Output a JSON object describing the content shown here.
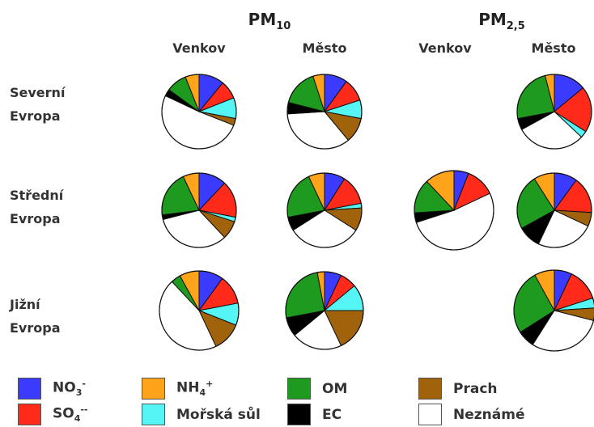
{
  "chart_data": {
    "type": "pie",
    "title": "",
    "groups": [
      {
        "label": "PM",
        "subscript": "10",
        "columns": [
          "Venkov",
          "Město"
        ]
      },
      {
        "label": "PM",
        "subscript": "2,5",
        "columns": [
          "Venkov",
          "Město"
        ]
      }
    ],
    "regions": [
      {
        "line1": "Severní",
        "line2": "Evropa"
      },
      {
        "line1": "Střední",
        "line2": "Evropa"
      },
      {
        "line1": "Jižní",
        "line2": "Evropa"
      }
    ],
    "components": [
      {
        "key": "NO3",
        "label": "NO",
        "sub": "3",
        "sup": "-",
        "color": "#3b3bff"
      },
      {
        "key": "SO4",
        "label": "SO",
        "sub": "4",
        "sup": "--",
        "color": "#ff2a1a"
      },
      {
        "key": "NH4",
        "label": "NH",
        "sub": "4",
        "sup": "+",
        "color": "#ffa31a"
      },
      {
        "key": "SeaSalt",
        "label": "Mořská sůl",
        "sub": "",
        "sup": "",
        "color": "#55f5f5"
      },
      {
        "key": "OM",
        "label": "OM",
        "sub": "",
        "sup": "",
        "color": "#1e9a1e"
      },
      {
        "key": "EC",
        "label": "EC",
        "sub": "",
        "sup": "",
        "color": "#000000"
      },
      {
        "key": "Dust",
        "label": "Prach",
        "sub": "",
        "sup": "",
        "color": "#a0620a"
      },
      {
        "key": "Unknown",
        "label": "Neznámé",
        "sub": "",
        "sup": "",
        "color": "#ffffff"
      }
    ],
    "pies": [
      {
        "region": "Severní Evropa",
        "size": "PM10",
        "site": "Venkov",
        "values": {
          "NO3": 11,
          "SO4": 8,
          "NH4": 6,
          "SeaSalt": 9,
          "OM": 9,
          "EC": 3,
          "Dust": 3,
          "Unknown": 51
        }
      },
      {
        "region": "Severní Evropa",
        "size": "PM10",
        "site": "Město",
        "values": {
          "NO3": 10,
          "SO4": 10,
          "NH4": 5,
          "SeaSalt": 8,
          "OM": 16,
          "EC": 5,
          "Dust": 11,
          "Unknown": 35
        }
      },
      {
        "region": "Severní Evropa",
        "size": "PM2,5",
        "site": "Město",
        "values": {
          "NO3": 14,
          "SO4": 20,
          "NH4": 4,
          "SeaSalt": 3,
          "OM": 24,
          "EC": 5,
          "Dust": 0,
          "Unknown": 30
        }
      },
      {
        "region": "Střední Evropa",
        "size": "PM10",
        "site": "Venkov",
        "values": {
          "NO3": 12,
          "SO4": 16,
          "NH4": 7,
          "SeaSalt": 2,
          "OM": 20,
          "EC": 2,
          "Dust": 8,
          "Unknown": 33
        }
      },
      {
        "region": "Střední Evropa",
        "size": "PM10",
        "site": "Město",
        "values": {
          "NO3": 9,
          "SO4": 13,
          "NH4": 7,
          "SeaSalt": 2,
          "OM": 21,
          "EC": 6,
          "Dust": 10,
          "Unknown": 32
        }
      },
      {
        "region": "Střední Evropa",
        "size": "PM2,5",
        "site": "Venkov",
        "values": {
          "NO3": 6,
          "SO4": 12,
          "NH4": 12,
          "SeaSalt": 0,
          "OM": 14,
          "EC": 4,
          "Dust": 0,
          "Unknown": 52
        }
      },
      {
        "region": "Střední Evropa",
        "size": "PM2,5",
        "site": "Město",
        "values": {
          "NO3": 10,
          "SO4": 16,
          "NH4": 9,
          "SeaSalt": 0,
          "OM": 24,
          "EC": 10,
          "Dust": 6,
          "Unknown": 25
        }
      },
      {
        "region": "Jižní Evropa",
        "size": "PM10",
        "site": "Venkov",
        "values": {
          "NO3": 10,
          "SO4": 12,
          "NH4": 8,
          "SeaSalt": 9,
          "OM": 4,
          "EC": 0,
          "Dust": 12,
          "Unknown": 45
        }
      },
      {
        "region": "Jižní Evropa",
        "size": "PM10",
        "site": "Město",
        "values": {
          "NO3": 7,
          "SO4": 7,
          "NH4": 3,
          "SeaSalt": 11,
          "OM": 25,
          "EC": 8,
          "Dust": 18,
          "Unknown": 21
        }
      },
      {
        "region": "Jižní Evropa",
        "size": "PM2,5",
        "site": "Město",
        "values": {
          "NO3": 7,
          "SO4": 13,
          "NH4": 8,
          "SeaSalt": 4,
          "OM": 26,
          "EC": 7,
          "Dust": 5,
          "Unknown": 30
        }
      }
    ]
  }
}
